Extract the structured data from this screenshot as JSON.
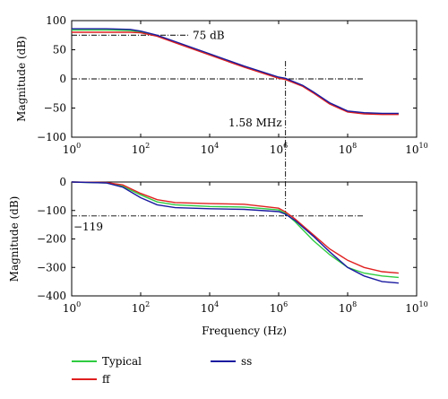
{
  "chart_data": [
    {
      "type": "line",
      "xscale": "log",
      "xlim": [
        1,
        10000000000
      ],
      "ylim": [
        -100,
        100
      ],
      "yticks": [
        100,
        50,
        0,
        -50,
        -100
      ],
      "ytick_labels": [
        "100",
        "50",
        "0",
        "−50",
        "−100"
      ],
      "xtick_base": "10",
      "xtick_exponents": [
        "0",
        "2",
        "4",
        "6",
        "8",
        "10"
      ],
      "xtick_values": [
        1,
        100,
        10000,
        1000000,
        100000000,
        10000000000
      ],
      "xlabel": "",
      "ylabel": "Magnitude (dB)",
      "grid": false,
      "annotations": [
        {
          "text": "75 dB",
          "x": 10000000,
          "y": 75
        },
        {
          "text": "1.58 MHz",
          "x": 1580000,
          "y": -70
        }
      ],
      "reference_lines": {
        "dB_level": 75,
        "zero_level": 0,
        "crossover_hz": 1580000,
        "hline_to_hz": 300000000
      },
      "series": [
        {
          "name": "Typical",
          "color": "#2ecc40",
          "x": [
            1,
            10,
            50,
            100,
            300,
            1000,
            10000,
            100000,
            1000000,
            1580000,
            5000000,
            10000000,
            30000000,
            100000000,
            300000000,
            1000000000,
            3000000000
          ],
          "y": [
            84,
            84,
            83,
            81,
            74,
            63,
            42,
            21,
            2,
            0,
            -12,
            -23,
            -42,
            -56,
            -59,
            -60,
            -60
          ]
        },
        {
          "name": "ff",
          "color": "#e02020",
          "x": [
            1,
            10,
            50,
            100,
            300,
            1000,
            10000,
            100000,
            1000000,
            1580000,
            5000000,
            10000000,
            30000000,
            100000000,
            300000000,
            1000000000,
            3000000000
          ],
          "y": [
            80,
            80,
            80,
            79,
            73,
            62,
            41,
            20,
            1,
            -1,
            -13,
            -24,
            -43,
            -57,
            -60,
            -61,
            -61
          ]
        },
        {
          "name": "ss",
          "color": "#1a1aa0",
          "x": [
            1,
            10,
            50,
            100,
            300,
            1000,
            10000,
            100000,
            1000000,
            1580000,
            5000000,
            10000000,
            30000000,
            100000000,
            300000000,
            1000000000,
            3000000000
          ],
          "y": [
            86,
            86,
            85,
            82,
            75,
            64,
            43,
            22,
            3,
            1,
            -11,
            -22,
            -41,
            -55,
            -58,
            -59,
            -59
          ]
        }
      ]
    },
    {
      "type": "line",
      "xscale": "log",
      "xlim": [
        1,
        10000000000
      ],
      "ylim": [
        -400,
        0
      ],
      "yticks": [
        0,
        -100,
        -200,
        -300,
        -400
      ],
      "ytick_labels": [
        "0",
        "−100",
        "−200",
        "−300",
        "−400"
      ],
      "xtick_base": "10",
      "xtick_exponents": [
        "0",
        "2",
        "4",
        "6",
        "8",
        "10"
      ],
      "xtick_values": [
        1,
        100,
        10000,
        1000000,
        100000000,
        10000000000
      ],
      "xlabel": "Frequency (Hz)",
      "ylabel": "Magnitude (dB)",
      "grid": false,
      "annotations": [
        {
          "text": "−119",
          "x": 1.5,
          "y": -150
        }
      ],
      "reference_lines": {
        "dB_level": -119,
        "crossover_hz": 1580000,
        "hline_to_hz": 300000000
      },
      "series": [
        {
          "name": "Typical",
          "color": "#2ecc40",
          "x": [
            1,
            10,
            30,
            100,
            300,
            1000,
            10000,
            100000,
            1000000,
            1580000,
            3000000,
            10000000,
            30000000,
            100000000,
            300000000,
            1000000000,
            3000000000
          ],
          "y": [
            0,
            -3,
            -15,
            -45,
            -70,
            -80,
            -86,
            -88,
            -98,
            -110,
            -140,
            -205,
            -255,
            -300,
            -320,
            -330,
            -335
          ]
        },
        {
          "name": "ff",
          "color": "#e02020",
          "x": [
            1,
            10,
            30,
            100,
            300,
            1000,
            10000,
            100000,
            1000000,
            1580000,
            3000000,
            10000000,
            30000000,
            100000000,
            300000000,
            1000000000,
            3000000000
          ],
          "y": [
            0,
            -2,
            -10,
            -40,
            -62,
            -72,
            -76,
            -78,
            -92,
            -105,
            -130,
            -185,
            -235,
            -275,
            -300,
            -315,
            -320
          ]
        },
        {
          "name": "ss",
          "color": "#1a1aa0",
          "x": [
            1,
            10,
            30,
            100,
            300,
            1000,
            10000,
            100000,
            1000000,
            1580000,
            3000000,
            10000000,
            30000000,
            100000000,
            300000000,
            1000000000,
            3000000000
          ],
          "y": [
            0,
            -3,
            -18,
            -55,
            -80,
            -90,
            -94,
            -96,
            -104,
            -113,
            -135,
            -190,
            -245,
            -300,
            -330,
            -350,
            -355
          ]
        }
      ]
    }
  ],
  "legend": {
    "placement": "bottom",
    "entries": [
      {
        "label": "Typical",
        "color": "#2ecc40"
      },
      {
        "label": "ff",
        "color": "#e02020"
      },
      {
        "label": "ss",
        "color": "#1a1aa0"
      }
    ]
  }
}
